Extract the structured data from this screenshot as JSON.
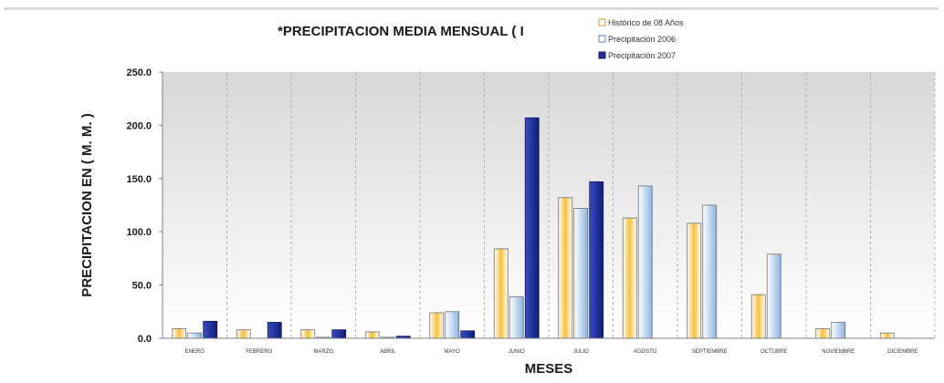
{
  "chart_data": {
    "type": "bar",
    "title": "*PRECIPITACION MEDIA MENSUAL ( I",
    "xlabel": "MESES",
    "ylabel": "PRECIPITACION EN ( M. M. )",
    "ylim": [
      0,
      250
    ],
    "yticks": [
      "0.0",
      "50.0",
      "100.0",
      "150.0",
      "200.0",
      "250.0"
    ],
    "ytick_values": [
      0,
      50,
      100,
      150,
      200,
      250
    ],
    "grid": "vertical",
    "legend_position": "top-right",
    "categories": [
      "ENERO",
      "FEBRERO",
      "MARZO",
      "ABRIL",
      "MAYO",
      "JUNIO",
      "JULIO",
      "AGOSTO",
      "SEPTIEMBRE",
      "OCTUBRE",
      "NOVIEMBRE",
      "DICIEMBRE"
    ],
    "series": [
      {
        "name": "Histórico de 08 Años",
        "color": "#f5c040",
        "values": [
          9,
          8,
          8,
          6,
          24,
          84,
          132,
          113,
          108,
          41,
          9,
          5
        ]
      },
      {
        "name": "Precipitación 2006",
        "color": "#8cb4e0",
        "values": [
          5,
          0,
          1,
          1,
          25,
          39,
          122,
          143,
          125,
          79,
          15,
          0
        ]
      },
      {
        "name": "Precipitación 2007",
        "color": "#1f2f96",
        "values": [
          16,
          15,
          8,
          2,
          7,
          207,
          147,
          0,
          0,
          0,
          0,
          0
        ]
      }
    ]
  }
}
